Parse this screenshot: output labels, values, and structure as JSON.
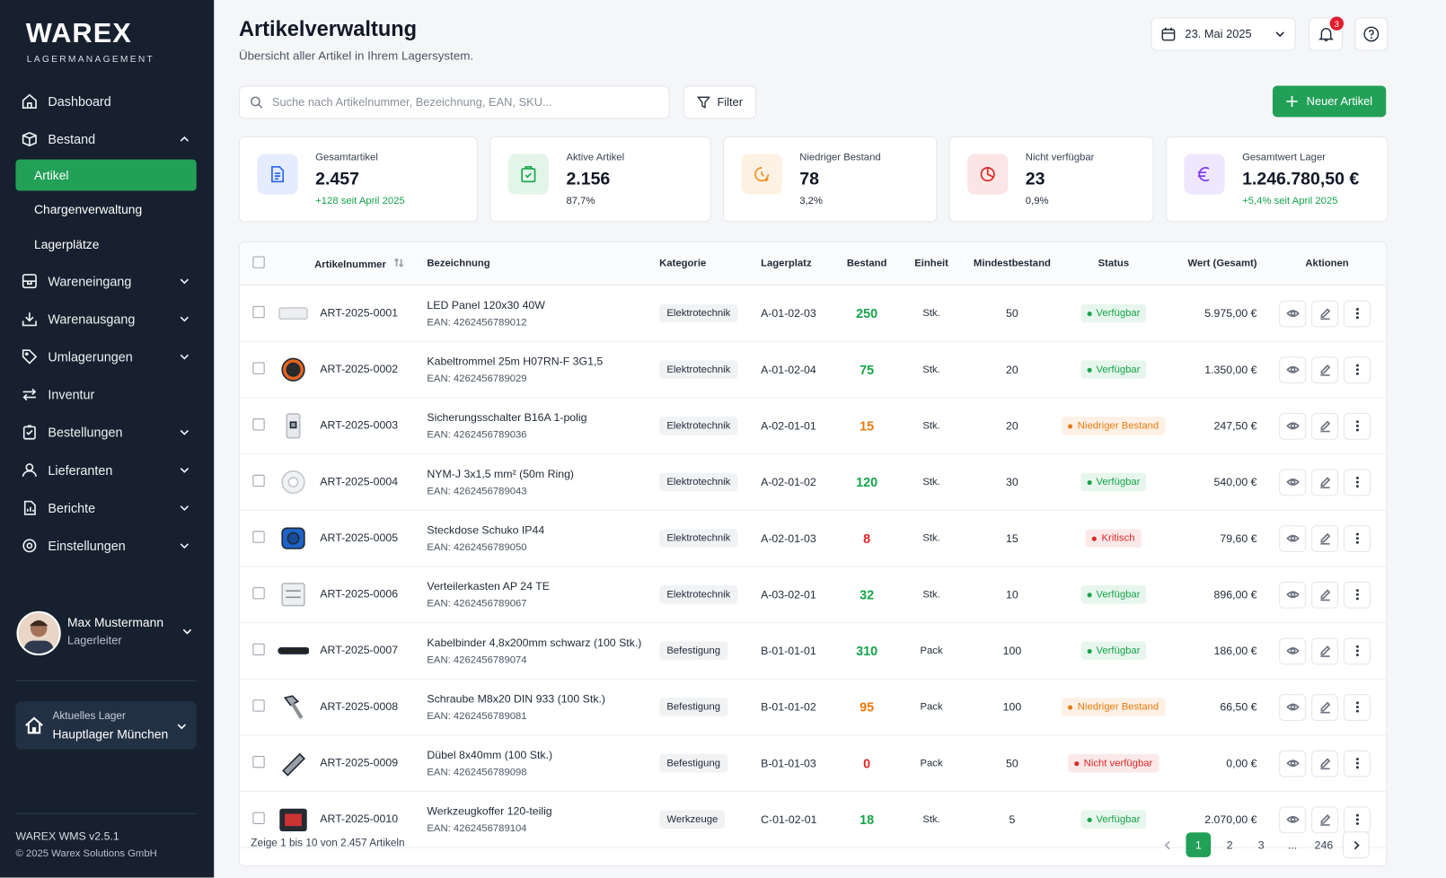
{
  "sidebar": {
    "logo": "WAREX",
    "logo_sub": "LAGERMANAGEMENT",
    "nav": [
      {
        "label": "Dashboard"
      },
      {
        "label": "Bestand",
        "chevron": "up",
        "children": [
          {
            "label": "Artikel",
            "active": true
          },
          {
            "label": "Chargenverwaltung"
          },
          {
            "label": "Lagerplätze"
          }
        ]
      },
      {
        "label": "Wareneingang",
        "chevron": "down"
      },
      {
        "label": "Warenausgang",
        "chevron": "down"
      },
      {
        "label": "Umlagerungen",
        "chevron": "down"
      },
      {
        "label": "Inventur"
      },
      {
        "label": "Bestellungen",
        "chevron": "down"
      },
      {
        "label": "Lieferanten",
        "chevron": "down"
      },
      {
        "label": "Berichte",
        "chevron": "down"
      },
      {
        "label": "Einstellungen",
        "chevron": "down"
      }
    ],
    "user": {
      "name": "Max Mustermann",
      "role": "Lagerleiter"
    },
    "warehouse": {
      "label": "Aktuelles Lager",
      "name": "Hauptlager München"
    },
    "version": "WAREX WMS v2.5.1",
    "copyright": "© 2025 Warex Solutions GmbH"
  },
  "header": {
    "title": "Artikelverwaltung",
    "subtitle": "Übersicht aller Artikel in Ihrem Lagersystem.",
    "date": "23. Mai 2025",
    "notifications": "3"
  },
  "toolbar": {
    "search_placeholder": "Suche nach Artikelnummer, Bezeichnung, EAN, SKU...",
    "filter": "Filter",
    "new_button": "Neuer Artikel"
  },
  "stats": [
    {
      "label": "Gesamtartikel",
      "value": "2.457",
      "note": "+128 seit April 2025",
      "accent": "#2563eb",
      "note_color": "#16a34a"
    },
    {
      "label": "Aktive Artikel",
      "value": "2.156",
      "note": "87,7%",
      "accent": "#16a34a",
      "note_color": "#1f2937"
    },
    {
      "label": "Niedriger Bestand",
      "value": "78",
      "note": "3,2%",
      "accent": "#f08c1a",
      "note_color": "#1f2937"
    },
    {
      "label": "Nicht verfügbar",
      "value": "23",
      "note": "0,9%",
      "accent": "#dc2626",
      "note_color": "#1f2937"
    },
    {
      "label": "Gesamtwert Lager",
      "value": "1.246.780,50 €",
      "note": "+5,4% seit April 2025",
      "accent": "#7c3aed",
      "note_color": "#16a34a"
    }
  ],
  "table": {
    "columns": [
      "Artikelnummer",
      "Bezeichnung",
      "Kategorie",
      "Lagerplatz",
      "Bestand",
      "Einheit",
      "Mindestbestand",
      "Status",
      "Wert (Gesamt)",
      "Aktionen"
    ],
    "rows": [
      {
        "number": "ART-2025-0001",
        "name": "LED Panel 120x30 40W",
        "ean": "EAN: 4262456789012",
        "category": "Elektrotechnik",
        "location": "A-01-02-03",
        "stock": "250",
        "unit": "Stk.",
        "min": "50",
        "status": "Verfügbar",
        "status_color": "#16a34a",
        "value": "5.975,00 €"
      },
      {
        "number": "ART-2025-0002",
        "name": "Kabeltrommel 25m H07RN-F 3G1,5",
        "ean": "EAN: 4262456789029",
        "category": "Elektrotechnik",
        "location": "A-01-02-04",
        "stock": "75",
        "unit": "Stk.",
        "min": "20",
        "status": "Verfügbar",
        "status_color": "#16a34a",
        "value": "1.350,00 €"
      },
      {
        "number": "ART-2025-0003",
        "name": "Sicherungsschalter B16A 1-polig",
        "ean": "EAN: 4262456789036",
        "category": "Elektrotechnik",
        "location": "A-02-01-01",
        "stock": "15",
        "unit": "Stk.",
        "min": "20",
        "status": "Niedriger Bestand",
        "status_color": "#ea7a0c",
        "value": "247,50 €"
      },
      {
        "number": "ART-2025-0004",
        "name": "NYM-J 3x1,5 mm² (50m Ring)",
        "ean": "EAN: 4262456789043",
        "category": "Elektrotechnik",
        "location": "A-02-01-02",
        "stock": "120",
        "unit": "Stk.",
        "min": "30",
        "status": "Verfügbar",
        "status_color": "#16a34a",
        "value": "540,00 €"
      },
      {
        "number": "ART-2025-0005",
        "name": "Steckdose Schuko IP44",
        "ean": "EAN: 4262456789050",
        "category": "Elektrotechnik",
        "location": "A-02-01-03",
        "stock": "8",
        "unit": "Stk.",
        "min": "15",
        "status": "Kritisch",
        "status_color": "#dc2626",
        "value": "79,60 €"
      },
      {
        "number": "ART-2025-0006",
        "name": "Verteilerkasten AP 24 TE",
        "ean": "EAN: 4262456789067",
        "category": "Elektrotechnik",
        "location": "A-03-02-01",
        "stock": "32",
        "unit": "Stk.",
        "min": "10",
        "status": "Verfügbar",
        "status_color": "#16a34a",
        "value": "896,00 €"
      },
      {
        "number": "ART-2025-0007",
        "name": "Kabelbinder 4,8x200mm schwarz (100 Stk.)",
        "ean": "EAN: 4262456789074",
        "category": "Befestigung",
        "location": "B-01-01-01",
        "stock": "310",
        "unit": "Pack",
        "min": "100",
        "status": "Verfügbar",
        "status_color": "#16a34a",
        "value": "186,00 €"
      },
      {
        "number": "ART-2025-0008",
        "name": "Schraube M8x20 DIN 933 (100 Stk.)",
        "ean": "EAN: 4262456789081",
        "category": "Befestigung",
        "location": "B-01-01-02",
        "stock": "95",
        "unit": "Pack",
        "min": "100",
        "status": "Niedriger Bestand",
        "status_color": "#ea7a0c",
        "value": "66,50 €"
      },
      {
        "number": "ART-2025-0009",
        "name": "Dübel 8x40mm (100 Stk.)",
        "ean": "EAN: 4262456789098",
        "category": "Befestigung",
        "location": "B-01-01-03",
        "stock": "0",
        "unit": "Pack",
        "min": "50",
        "status": "Nicht verfügbar",
        "status_color": "#dc2626",
        "value": "0,00 €"
      },
      {
        "number": "ART-2025-0010",
        "name": "Werkzeugkoffer 120-teilig",
        "ean": "EAN: 4262456789104",
        "category": "Werkzeuge",
        "location": "C-01-02-01",
        "stock": "18",
        "unit": "Stk.",
        "min": "5",
        "status": "Verfügbar",
        "status_color": "#16a34a",
        "value": "2.070,00 €"
      }
    ]
  },
  "pagination": {
    "summary": "Zeige 1 bis 10 von 2.457 Artikeln",
    "pages": [
      "1",
      "2",
      "3",
      "...",
      "246"
    ],
    "current": 0
  }
}
